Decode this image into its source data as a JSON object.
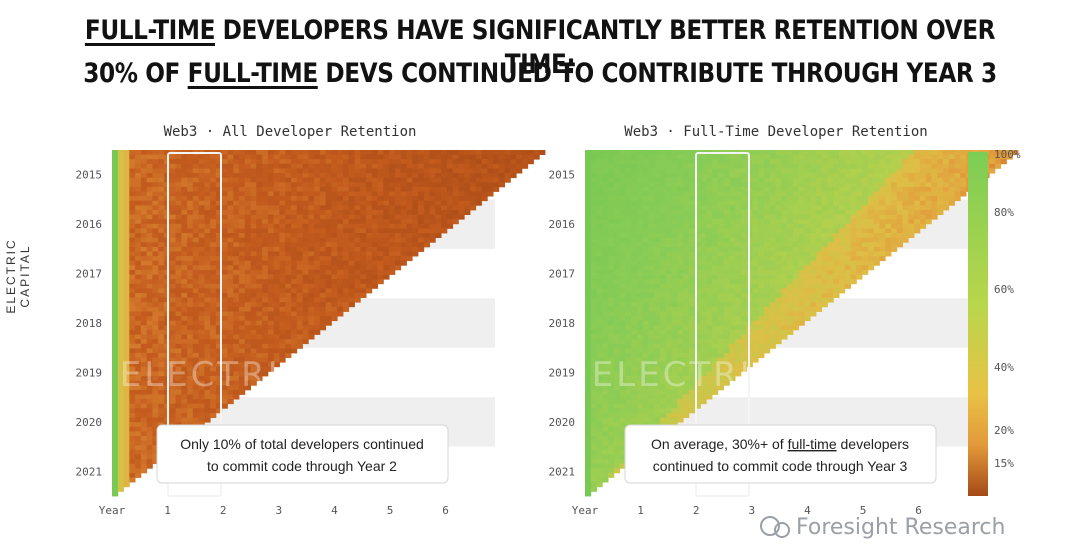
{
  "header": {
    "line1_em": "FULL-TIME",
    "line1_rest": " DEVELOPERS HAVE SIGNIFICANTLY BETTER RETENTION OVER TIME:",
    "line2_pre": "30% OF ",
    "line2_em": "FULL-TIME",
    "line2_rest": " DEVS CONTINUED TO CONTRIBUTE THROUGH YEAR 3"
  },
  "brand": "ELECTRIC CAPITAL",
  "watermark": "ELECTRIC CAPITAL",
  "footer_brand": "Foresight Research",
  "colors": {
    "green": "#7ccd55",
    "orange": "#e39a3a",
    "dark": "#a54a18",
    "band": "#efefef"
  },
  "chart_data": [
    {
      "type": "heatmap",
      "title": "Web3 · All Developer Retention",
      "y_ticks": [
        "2015",
        "2016",
        "2017",
        "2018",
        "2019",
        "2020",
        "2021"
      ],
      "x_ticks": [
        "Year",
        "1",
        "2",
        "3",
        "4",
        "5",
        "6"
      ],
      "highlight_x_range": [
        1,
        2
      ],
      "callout": [
        "Only 10% of total developers continued",
        "to commit code through Year 2"
      ],
      "approx_retention_year2_pct": 10
    },
    {
      "type": "heatmap",
      "title": "Web3 · Full-Time Developer Retention",
      "y_ticks": [
        "2015",
        "2016",
        "2017",
        "2018",
        "2019",
        "2020",
        "2021"
      ],
      "x_ticks": [
        "Year",
        "1",
        "2",
        "3",
        "4",
        "5",
        "6"
      ],
      "highlight_x_range": [
        2,
        3
      ],
      "callout_line1_pre": "On average, 30%+ of ",
      "callout_line1_em": "full-time",
      "callout_line1_post": " developers",
      "callout_line2": "continued to commit code through Year 3",
      "approx_retention_year3_pct": 30,
      "colorbar": {
        "labels": [
          "100%",
          "80%",
          "60%",
          "40%",
          "20%",
          "15%"
        ],
        "values": [
          100,
          80,
          60,
          40,
          20,
          15
        ]
      }
    }
  ]
}
